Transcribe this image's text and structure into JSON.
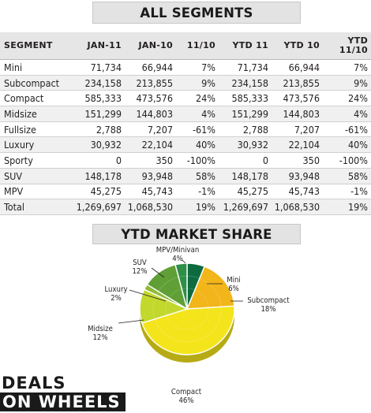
{
  "banners": {
    "top": "ALL SEGMENTS",
    "middle": "YTD MARKET SHARE"
  },
  "table": {
    "headers": [
      "SEGMENT",
      "JAN-11",
      "JAN-10",
      "11/10",
      "YTD 11",
      "YTD 10",
      "YTD 11/10"
    ],
    "rows": [
      [
        "Mini",
        "71,734",
        "66,944",
        "7%",
        "71,734",
        "66,944",
        "7%"
      ],
      [
        "Subcompact",
        "234,158",
        "213,855",
        "9%",
        "234,158",
        "213,855",
        "9%"
      ],
      [
        "Compact",
        "585,333",
        "473,576",
        "24%",
        "585,333",
        "473,576",
        "24%"
      ],
      [
        "Midsize",
        "151,299",
        "144,803",
        "4%",
        "151,299",
        "144,803",
        "4%"
      ],
      [
        "Fullsize",
        "2,788",
        "7,207",
        "-61%",
        "2,788",
        "7,207",
        "-61%"
      ],
      [
        "Luxury",
        "30,932",
        "22,104",
        "40%",
        "30,932",
        "22,104",
        "40%"
      ],
      [
        "Sporty",
        "0",
        "350",
        "-100%",
        "0",
        "350",
        "-100%"
      ],
      [
        "SUV",
        "148,178",
        "93,948",
        "58%",
        "148,178",
        "93,948",
        "58%"
      ],
      [
        "MPV",
        "45,275",
        "45,743",
        "-1%",
        "45,275",
        "45,743",
        "-1%"
      ],
      [
        "Total",
        "1,269,697",
        "1,068,530",
        "19%",
        "1,269,697",
        "1,068,530",
        "19%"
      ]
    ]
  },
  "chart_data": {
    "type": "pie",
    "title": "YTD MARKET SHARE",
    "slices": [
      {
        "label": "Mini",
        "value": 6,
        "color": "#0d6b3f"
      },
      {
        "label": "Subcompact",
        "value": 18,
        "color": "#f2b51a"
      },
      {
        "label": "Compact",
        "value": 46,
        "color": "#f4e41c"
      },
      {
        "label": "Midsize",
        "value": 12,
        "color": "#c2d82d"
      },
      {
        "label": "Luxury",
        "value": 2,
        "color": "#8fba38"
      },
      {
        "label": "SUV",
        "value": 12,
        "color": "#5f9f35"
      },
      {
        "label": "MPV/Minivan",
        "value": 4,
        "color": "#2e8f48"
      }
    ]
  },
  "logo": {
    "line1": "DEALS",
    "line2": "ON WHEELS"
  }
}
